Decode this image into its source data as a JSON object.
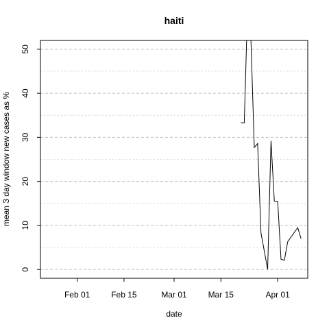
{
  "chart_data": {
    "type": "line",
    "title": "haiti",
    "xlabel": "date",
    "ylabel": "mean  3  day window new cases as %",
    "x_ticks": [
      {
        "date": "2020-02-01",
        "label": "Feb 01"
      },
      {
        "date": "2020-02-15",
        "label": "Feb 15"
      },
      {
        "date": "2020-03-01",
        "label": "Mar 01"
      },
      {
        "date": "2020-03-15",
        "label": "Mar 15"
      },
      {
        "date": "2020-04-01",
        "label": "Apr 01"
      }
    ],
    "y_ticks": [
      0,
      10,
      20,
      30,
      40,
      50
    ],
    "xlim": [
      "2020-01-21",
      "2020-04-10"
    ],
    "ylim": [
      -2,
      52
    ],
    "grid": "horizontal dashed",
    "series": [
      {
        "color": "#000000",
        "points": [
          {
            "x": "2020-03-21",
            "y": 33.3
          },
          {
            "x": "2020-03-22",
            "y": 33.3
          },
          {
            "x": "2020-03-23",
            "y": 60
          },
          {
            "x": "2020-03-24",
            "y": 52
          },
          {
            "x": "2020-03-25",
            "y": 27.7
          },
          {
            "x": "2020-03-26",
            "y": 28.6
          },
          {
            "x": "2020-03-27",
            "y": 8.3
          },
          {
            "x": "2020-03-29",
            "y": 0
          },
          {
            "x": "2020-03-30",
            "y": 29.2
          },
          {
            "x": "2020-03-31",
            "y": 15.5
          },
          {
            "x": "2020-04-01",
            "y": 15.5
          },
          {
            "x": "2020-04-02",
            "y": 2.3
          },
          {
            "x": "2020-04-03",
            "y": 2.1
          },
          {
            "x": "2020-04-04",
            "y": 6.3
          },
          {
            "x": "2020-04-07",
            "y": 9.5
          },
          {
            "x": "2020-04-08",
            "y": 7.0
          }
        ]
      }
    ]
  }
}
